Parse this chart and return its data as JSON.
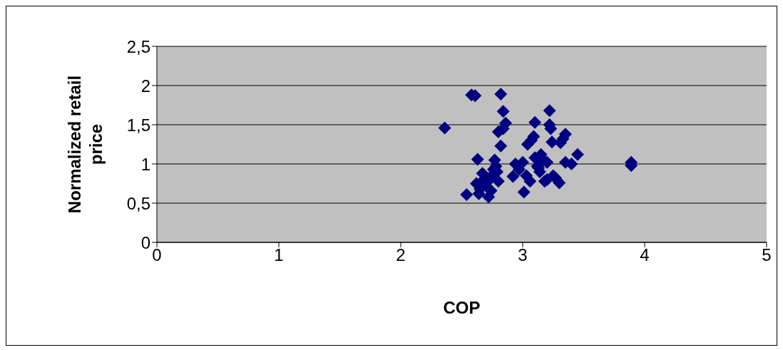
{
  "chart_data": {
    "type": "scatter",
    "xlabel": "COP",
    "ylabel": "Normalized retail price",
    "xlim": [
      0,
      5
    ],
    "xticks": [
      0,
      1,
      2,
      3,
      4,
      5
    ],
    "ylim": [
      0,
      2.5
    ],
    "yticks": [
      0,
      {
        "value": 0.5,
        "label": "0,5"
      },
      1,
      {
        "value": 1.5,
        "label": "1,5"
      },
      2,
      {
        "value": 2.5,
        "label": "2,5"
      }
    ],
    "grid": "y",
    "marker": "diamond",
    "series": [
      {
        "color": "#000080",
        "x": [
          2.36,
          2.58,
          2.61,
          2.82,
          2.84,
          2.86,
          2.84,
          2.8,
          2.82,
          2.54,
          2.63,
          2.62,
          2.65,
          2.64,
          2.67,
          2.68,
          2.7,
          2.72,
          2.74,
          2.76,
          2.77,
          2.78,
          2.8,
          2.79,
          2.71,
          2.74,
          2.92,
          2.94,
          2.97,
          3.0,
          3.01,
          3.03,
          3.04,
          3.06,
          3.07,
          3.09,
          3.1,
          3.1,
          3.12,
          3.14,
          3.15,
          3.17,
          3.18,
          3.2,
          3.22,
          3.22,
          3.23,
          3.24,
          3.25,
          3.27,
          3.3,
          3.31,
          3.33,
          3.35,
          3.35,
          3.4,
          3.45,
          3.89,
          3.89,
          3.13,
          3.2
        ],
        "values": [
          1.46,
          1.88,
          1.87,
          1.89,
          1.67,
          1.52,
          1.45,
          1.41,
          1.23,
          0.61,
          1.06,
          0.75,
          0.68,
          0.62,
          0.88,
          0.8,
          0.72,
          0.58,
          0.84,
          0.93,
          1.05,
          0.97,
          0.78,
          0.9,
          0.77,
          0.66,
          0.84,
          1.0,
          0.93,
          1.02,
          0.64,
          0.85,
          1.25,
          0.78,
          1.3,
          1.35,
          1.53,
          1.08,
          0.97,
          0.9,
          1.12,
          1.05,
          0.78,
          1.02,
          1.68,
          1.5,
          1.45,
          1.28,
          0.85,
          0.82,
          0.76,
          1.27,
          1.32,
          1.38,
          1.02,
          1.0,
          1.12,
          1.02,
          0.98,
          0.95,
          0.8
        ]
      }
    ]
  }
}
